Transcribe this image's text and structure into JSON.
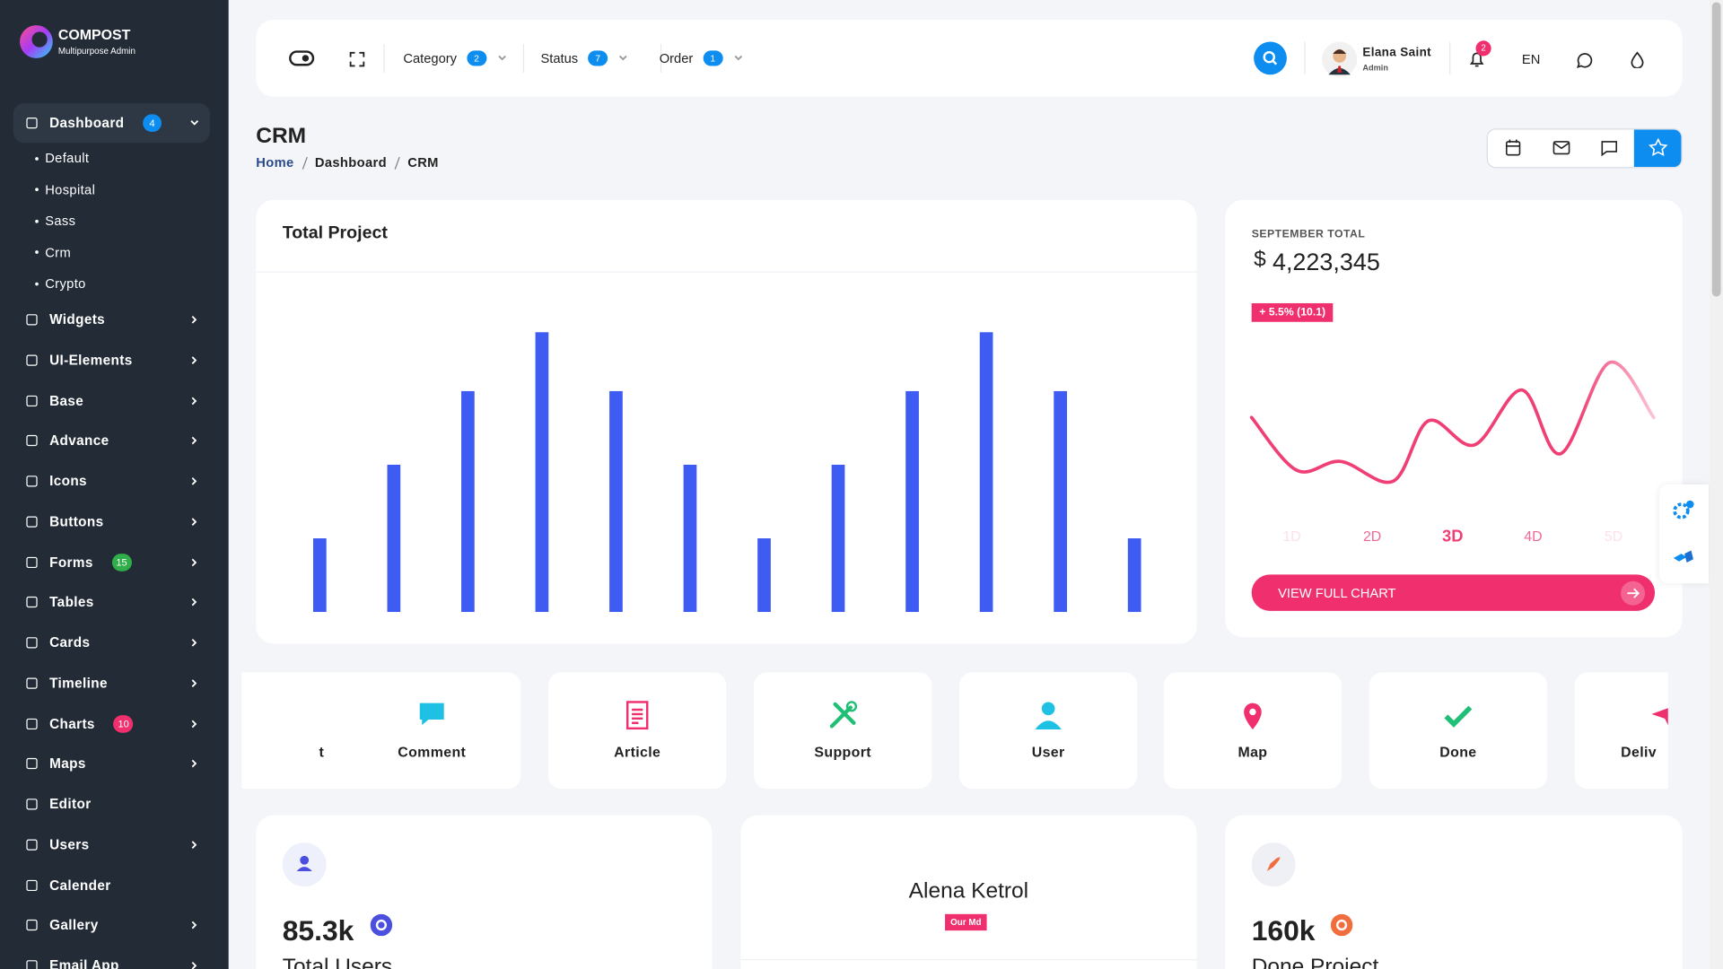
{
  "sidebar": {
    "brand": "COMPOST",
    "tagline": "Multipurpose Admin",
    "menu": [
      {
        "label": "Dashboard",
        "badge": 4,
        "badge_color": "#0d8df0",
        "children": [
          "Default",
          "Hospital",
          "Sass",
          "Crm",
          "Crypto"
        ]
      },
      {
        "label": "Widgets"
      },
      {
        "label": "UI-Elements"
      },
      {
        "label": "Base"
      },
      {
        "label": "Advance"
      },
      {
        "label": "Icons"
      },
      {
        "label": "Buttons"
      },
      {
        "label": "Forms",
        "badge": 15,
        "badge_color": "#2fae4a"
      },
      {
        "label": "Tables"
      },
      {
        "label": "Cards"
      },
      {
        "label": "Timeline"
      },
      {
        "label": "Charts",
        "badge": 10,
        "badge_color": "#f0306e"
      },
      {
        "label": "Maps"
      },
      {
        "label": "Editor"
      },
      {
        "label": "Users"
      },
      {
        "label": "Calender"
      },
      {
        "label": "Gallery"
      },
      {
        "label": "Email App"
      }
    ]
  },
  "header": {
    "filters": [
      {
        "label": "Category",
        "count": 2
      },
      {
        "label": "Status",
        "count": 7
      },
      {
        "label": "Order",
        "count": 1
      }
    ],
    "user": {
      "name": "Elana Saint",
      "role": "Admin"
    },
    "notifications": 2,
    "language": "EN"
  },
  "page": {
    "title": "CRM",
    "breadcrumb": [
      "Home",
      "Dashboard",
      "CRM"
    ]
  },
  "summary": {
    "label": "SEPTEMBER TOTAL",
    "currency": "$",
    "amount": "4,223,345",
    "change": "+ 5.5% (10.1)",
    "button": "VIEW FULL CHART"
  },
  "shortcuts": [
    "t",
    "Comment",
    "Article",
    "Support",
    "User",
    "Map",
    "Done",
    "Deliv"
  ],
  "stats": [
    {
      "value": "85.3k",
      "label": "Total Users"
    },
    {
      "name": "Alena Ketrol",
      "tag": "Our Md"
    },
    {
      "value": "160k",
      "label": "Done Project"
    }
  ],
  "chart_data": [
    {
      "type": "bar",
      "title": "Total Project",
      "categories": [
        null,
        null,
        null,
        null,
        null,
        null,
        null,
        null,
        null,
        null,
        null,
        null
      ],
      "values": [
        25,
        50,
        75,
        95,
        75,
        50,
        25,
        50,
        75,
        95,
        75,
        25
      ],
      "color": "#3e5bf2",
      "ylim": [
        0,
        100
      ]
    },
    {
      "type": "line",
      "x": [
        0.5,
        1.06,
        1.61,
        2.26,
        2.7,
        3.27,
        3.86,
        4.34,
        4.95,
        5.5
      ],
      "series": [
        {
          "color": "#ef3f74",
          "values": [
            70,
            22,
            30,
            12,
            67,
            45,
            95,
            37,
            120,
            70
          ]
        }
      ],
      "xlim": [
        0.5,
        5.5
      ],
      "xticks": [
        {
          "value": 1,
          "label": "1D"
        },
        {
          "value": 2,
          "label": "2D"
        },
        {
          "value": 3,
          "label": "3D"
        },
        {
          "value": 4,
          "label": "4D"
        },
        {
          "value": 5,
          "label": "5D"
        }
      ],
      "ylim": [
        0,
        130
      ]
    }
  ]
}
